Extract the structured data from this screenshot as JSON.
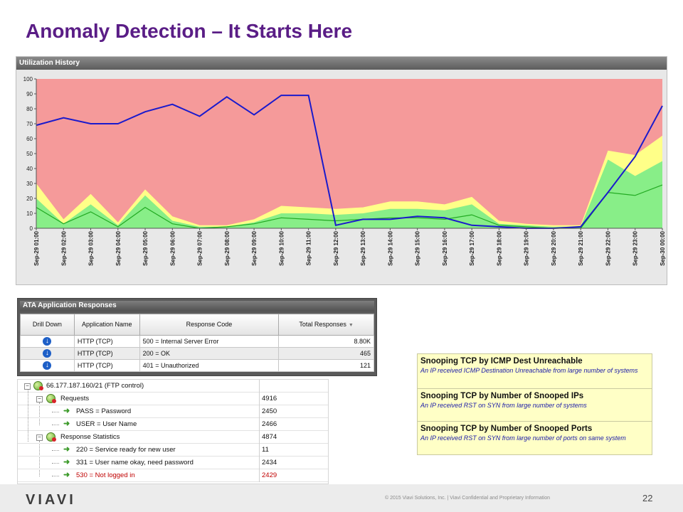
{
  "slide": {
    "title": "Anomaly Detection – It Starts Here",
    "page_number": "22",
    "logo_text": "VIAVI",
    "copyright": "© 2015 Viavi Solutions, Inc. | Viavi Confidential and Proprietary Information"
  },
  "utilization": {
    "header": "Utilization History"
  },
  "chart_data": {
    "type": "area",
    "title": "Utilization History",
    "xlabel": "",
    "ylabel": "",
    "ylim": [
      0,
      100
    ],
    "yticks": [
      0,
      10,
      20,
      30,
      40,
      50,
      60,
      70,
      80,
      90,
      100
    ],
    "grid": false,
    "categories": [
      "Sep-29 01:00",
      "Sep-29 02:00",
      "Sep-29 03:00",
      "Sep-29 04:00",
      "Sep-29 05:00",
      "Sep-29 06:00",
      "Sep-29 07:00",
      "Sep-29 08:00",
      "Sep-29 09:00",
      "Sep-29 10:00",
      "Sep-29 11:00",
      "Sep-29 12:00",
      "Sep-29 13:00",
      "Sep-29 14:00",
      "Sep-29 15:00",
      "Sep-29 16:00",
      "Sep-29 17:00",
      "Sep-29 18:00",
      "Sep-29 19:00",
      "Sep-29 20:00",
      "Sep-29 21:00",
      "Sep-29 22:00",
      "Sep-29 23:00",
      "Sep-30 00:00"
    ],
    "background_color": "#f59a9a",
    "series": [
      {
        "kind": "area",
        "color": "#ffff88",
        "values": [
          30,
          6,
          23,
          4,
          26,
          8,
          2,
          2,
          6,
          15,
          14,
          13,
          14,
          18,
          18,
          16,
          21,
          5,
          3,
          2,
          2,
          52,
          49,
          62
        ]
      },
      {
        "kind": "area",
        "color": "#88ee88",
        "values": [
          20,
          3,
          16,
          2,
          22,
          5,
          1,
          1,
          4,
          10,
          10,
          9,
          10,
          13,
          13,
          12,
          16,
          3,
          2,
          1,
          1,
          46,
          35,
          45
        ]
      },
      {
        "kind": "line",
        "color": "#22aa22",
        "values": [
          14,
          3,
          11,
          1,
          14,
          3,
          0,
          1,
          3,
          7,
          6,
          5,
          6,
          7,
          7,
          6,
          9,
          2,
          1,
          0,
          0,
          24,
          22,
          29
        ]
      },
      {
        "kind": "line",
        "color": "#1a1acc",
        "values": [
          69,
          74,
          70,
          70,
          78,
          83,
          75,
          88,
          76,
          89,
          89,
          2,
          6,
          6,
          8,
          7,
          2,
          1,
          0,
          0,
          1,
          24,
          48,
          82
        ]
      }
    ]
  },
  "ata": {
    "header": "ATA Application Responses",
    "columns": {
      "drill_down": "Drill Down",
      "app_name": "Application Name",
      "response_code": "Response Code",
      "total_responses": "Total Responses"
    },
    "rows": [
      {
        "app": "HTTP (TCP)",
        "code": "500 = Internal Server Error",
        "total": "8.80K"
      },
      {
        "app": "HTTP (TCP)",
        "code": "200 = OK",
        "total": "465"
      },
      {
        "app": "HTTP (TCP)",
        "code": "401 = Unauthorized",
        "total": "121"
      }
    ]
  },
  "tree": {
    "root": {
      "label": "66.177.187.160/21 (FTP control)",
      "value": ""
    },
    "requests": {
      "label": "Requests",
      "value": "4916"
    },
    "pass": {
      "label": "PASS = Password",
      "value": "2450"
    },
    "user": {
      "label": "USER = User Name",
      "value": "2466"
    },
    "resp_stats": {
      "label": "Response Statistics",
      "value": "4874"
    },
    "r220": {
      "label": "220 = Service ready for new user",
      "value": "11"
    },
    "r331": {
      "label": "331 = User name okay, need password",
      "value": "2434"
    },
    "r530": {
      "label": "530 = Not logged in",
      "value": "2429"
    }
  },
  "snooping": [
    {
      "title": "Snooping TCP by ICMP Dest Unreachable",
      "desc": "An IP received ICMP Destination Unreachable from large number of systems"
    },
    {
      "title": "Snooping TCP by Number of Snooped IPs",
      "desc": "An IP received RST on SYN from large number of systems"
    },
    {
      "title": "Snooping TCP by Number of Snooped Ports",
      "desc": "An IP received RST on SYN from large number of ports on same system"
    }
  ]
}
